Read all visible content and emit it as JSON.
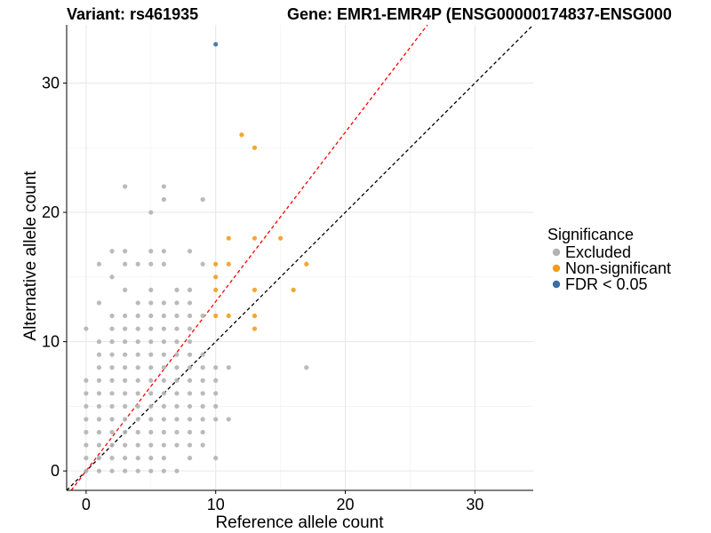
{
  "chart_data": {
    "type": "scatter",
    "title_left": "Variant: rs461935",
    "title_right": "Gene: EMR1-EMR4P (ENSG00000174837-ENSG000",
    "xlabel": "Reference allele count",
    "ylabel": "Alternative allele count",
    "xlim": [
      -1.5,
      34.5
    ],
    "ylim": [
      -1.5,
      34.5
    ],
    "xticks": [
      0,
      10,
      20,
      30
    ],
    "yticks": [
      0,
      10,
      20,
      30
    ],
    "grid": true,
    "reference_lines": [
      {
        "name": "identity",
        "slope": 1,
        "intercept": 0,
        "color": "#000000",
        "dash": "dashed"
      },
      {
        "name": "fitted",
        "slope": 1.31,
        "intercept": 0,
        "color": "#ff0000",
        "dash": "dashed"
      }
    ],
    "legend": {
      "title": "Significance",
      "position": "right",
      "entries": [
        {
          "label": "Excluded",
          "color": "#b3b3b3"
        },
        {
          "label": "Non-significant",
          "color": "#f39c1e"
        },
        {
          "label": "FDR < 0.05",
          "color": "#3b6ea5"
        }
      ]
    },
    "series": [
      {
        "name": "Excluded",
        "color": "#b3b3b3",
        "points": [
          [
            0,
            0
          ],
          [
            0,
            1
          ],
          [
            0,
            2
          ],
          [
            0,
            3
          ],
          [
            0,
            4
          ],
          [
            0,
            5
          ],
          [
            0,
            6
          ],
          [
            0,
            7
          ],
          [
            0,
            11
          ],
          [
            1,
            0
          ],
          [
            1,
            1
          ],
          [
            1,
            2
          ],
          [
            1,
            3
          ],
          [
            1,
            4
          ],
          [
            1,
            5
          ],
          [
            1,
            6
          ],
          [
            1,
            7
          ],
          [
            1,
            8
          ],
          [
            1,
            9
          ],
          [
            1,
            10
          ],
          [
            1,
            13
          ],
          [
            1,
            16
          ],
          [
            2,
            0
          ],
          [
            2,
            1
          ],
          [
            2,
            2
          ],
          [
            2,
            3
          ],
          [
            2,
            4
          ],
          [
            2,
            5
          ],
          [
            2,
            6
          ],
          [
            2,
            7
          ],
          [
            2,
            8
          ],
          [
            2,
            9
          ],
          [
            2,
            10
          ],
          [
            2,
            11
          ],
          [
            2,
            12
          ],
          [
            2,
            15
          ],
          [
            2,
            17
          ],
          [
            3,
            0
          ],
          [
            3,
            1
          ],
          [
            3,
            2
          ],
          [
            3,
            3
          ],
          [
            3,
            4
          ],
          [
            3,
            5
          ],
          [
            3,
            6
          ],
          [
            3,
            7
          ],
          [
            3,
            8
          ],
          [
            3,
            9
          ],
          [
            3,
            10
          ],
          [
            3,
            11
          ],
          [
            3,
            12
          ],
          [
            3,
            14
          ],
          [
            3,
            16
          ],
          [
            3,
            17
          ],
          [
            3,
            22
          ],
          [
            4,
            0
          ],
          [
            4,
            1
          ],
          [
            4,
            2
          ],
          [
            4,
            3
          ],
          [
            4,
            4
          ],
          [
            4,
            5
          ],
          [
            4,
            6
          ],
          [
            4,
            7
          ],
          [
            4,
            8
          ],
          [
            4,
            9
          ],
          [
            4,
            10
          ],
          [
            4,
            11
          ],
          [
            4,
            12
          ],
          [
            4,
            13
          ],
          [
            4,
            16
          ],
          [
            5,
            0
          ],
          [
            5,
            1
          ],
          [
            5,
            2
          ],
          [
            5,
            3
          ],
          [
            5,
            4
          ],
          [
            5,
            5
          ],
          [
            5,
            6
          ],
          [
            5,
            7
          ],
          [
            5,
            8
          ],
          [
            5,
            9
          ],
          [
            5,
            10
          ],
          [
            5,
            11
          ],
          [
            5,
            12
          ],
          [
            5,
            13
          ],
          [
            5,
            14
          ],
          [
            5,
            16
          ],
          [
            5,
            17
          ],
          [
            5,
            20
          ],
          [
            6,
            0
          ],
          [
            6,
            1
          ],
          [
            6,
            2
          ],
          [
            6,
            3
          ],
          [
            6,
            4
          ],
          [
            6,
            5
          ],
          [
            6,
            6
          ],
          [
            6,
            7
          ],
          [
            6,
            8
          ],
          [
            6,
            9
          ],
          [
            6,
            10
          ],
          [
            6,
            11
          ],
          [
            6,
            12
          ],
          [
            6,
            13
          ],
          [
            6,
            16
          ],
          [
            6,
            17
          ],
          [
            6,
            21
          ],
          [
            6,
            22
          ],
          [
            7,
            0
          ],
          [
            7,
            2
          ],
          [
            7,
            3
          ],
          [
            7,
            4
          ],
          [
            7,
            5
          ],
          [
            7,
            6
          ],
          [
            7,
            7
          ],
          [
            7,
            8
          ],
          [
            7,
            9
          ],
          [
            7,
            10
          ],
          [
            7,
            11
          ],
          [
            7,
            12
          ],
          [
            7,
            13
          ],
          [
            7,
            14
          ],
          [
            8,
            1
          ],
          [
            8,
            2
          ],
          [
            8,
            3
          ],
          [
            8,
            4
          ],
          [
            8,
            5
          ],
          [
            8,
            6
          ],
          [
            8,
            7
          ],
          [
            8,
            8
          ],
          [
            8,
            9
          ],
          [
            8,
            10
          ],
          [
            8,
            11
          ],
          [
            8,
            12
          ],
          [
            8,
            13
          ],
          [
            8,
            14
          ],
          [
            8,
            17
          ],
          [
            9,
            2
          ],
          [
            9,
            3
          ],
          [
            9,
            4
          ],
          [
            9,
            5
          ],
          [
            9,
            6
          ],
          [
            9,
            7
          ],
          [
            9,
            8
          ],
          [
            9,
            9
          ],
          [
            9,
            12
          ],
          [
            9,
            16
          ],
          [
            9,
            21
          ],
          [
            10,
            1
          ],
          [
            10,
            4
          ],
          [
            10,
            5
          ],
          [
            10,
            6
          ],
          [
            10,
            7
          ],
          [
            10,
            8
          ],
          [
            11,
            4
          ],
          [
            11,
            8
          ],
          [
            17,
            8
          ]
        ]
      },
      {
        "name": "Non-significant",
        "color": "#f39c1e",
        "points": [
          [
            10,
            12
          ],
          [
            10,
            14
          ],
          [
            10,
            15
          ],
          [
            10,
            16
          ],
          [
            11,
            12
          ],
          [
            11,
            16
          ],
          [
            11,
            18
          ],
          [
            12,
            26
          ],
          [
            13,
            11
          ],
          [
            13,
            12
          ],
          [
            13,
            14
          ],
          [
            13,
            18
          ],
          [
            13,
            25
          ],
          [
            15,
            18
          ],
          [
            16,
            14
          ],
          [
            17,
            16
          ]
        ]
      },
      {
        "name": "FDR < 0.05",
        "color": "#3b6ea5",
        "points": [
          [
            10,
            33
          ]
        ]
      }
    ]
  }
}
